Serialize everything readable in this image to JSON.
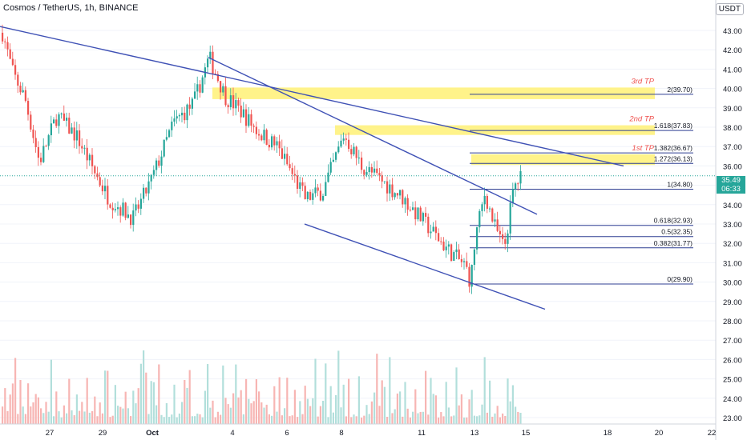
{
  "header": {
    "title": "Cosmos / TetherUS, 1h, BINANCE"
  },
  "price_axis": {
    "currency": "USDT",
    "current_price": "35.49",
    "countdown": "06:33",
    "ticks": [
      "43.00",
      "42.00",
      "41.00",
      "40.00",
      "39.00",
      "38.00",
      "37.00",
      "36.00",
      "35.00",
      "34.00",
      "33.00",
      "32.00",
      "31.00",
      "30.00",
      "29.00",
      "28.00",
      "27.00",
      "26.00",
      "25.00",
      "24.00",
      "23.00"
    ]
  },
  "time_axis": {
    "labels": [
      "27",
      "29",
      "Oct",
      "4",
      "6",
      "8",
      "11",
      "13",
      "15",
      "18",
      "20",
      "22"
    ]
  },
  "fib_levels": [
    {
      "label": "2(39.70)",
      "value": 39.7
    },
    {
      "label": "1.618(37.83)",
      "value": 37.83
    },
    {
      "label": "1.382(36.67)",
      "value": 36.67
    },
    {
      "label": "1.272(36.13)",
      "value": 36.13
    },
    {
      "label": "1(34.80)",
      "value": 34.8
    },
    {
      "label": "0.618(32.93)",
      "value": 32.93
    },
    {
      "label": "0.5(32.35)",
      "value": 32.35
    },
    {
      "label": "0.382(31.77)",
      "value": 31.77
    },
    {
      "label": "0(29.90)",
      "value": 29.9
    }
  ],
  "targets": [
    {
      "label": "3rd TP",
      "low": 39.45,
      "high": 40.05
    },
    {
      "label": "2nd TP",
      "low": 37.6,
      "high": 38.1
    },
    {
      "label": "1st TP",
      "low": 36.05,
      "high": 36.6
    }
  ],
  "colors": {
    "up": "#26a69a",
    "down": "#ef5350",
    "vol_up": "#b2dfdb",
    "vol_down": "#f7b5b3",
    "trendline": "#3f51b5",
    "fib": "#2f3f93",
    "target_fill": "#fff176",
    "target_text": "#ef5350",
    "grid": "#f0f3fa"
  }
}
